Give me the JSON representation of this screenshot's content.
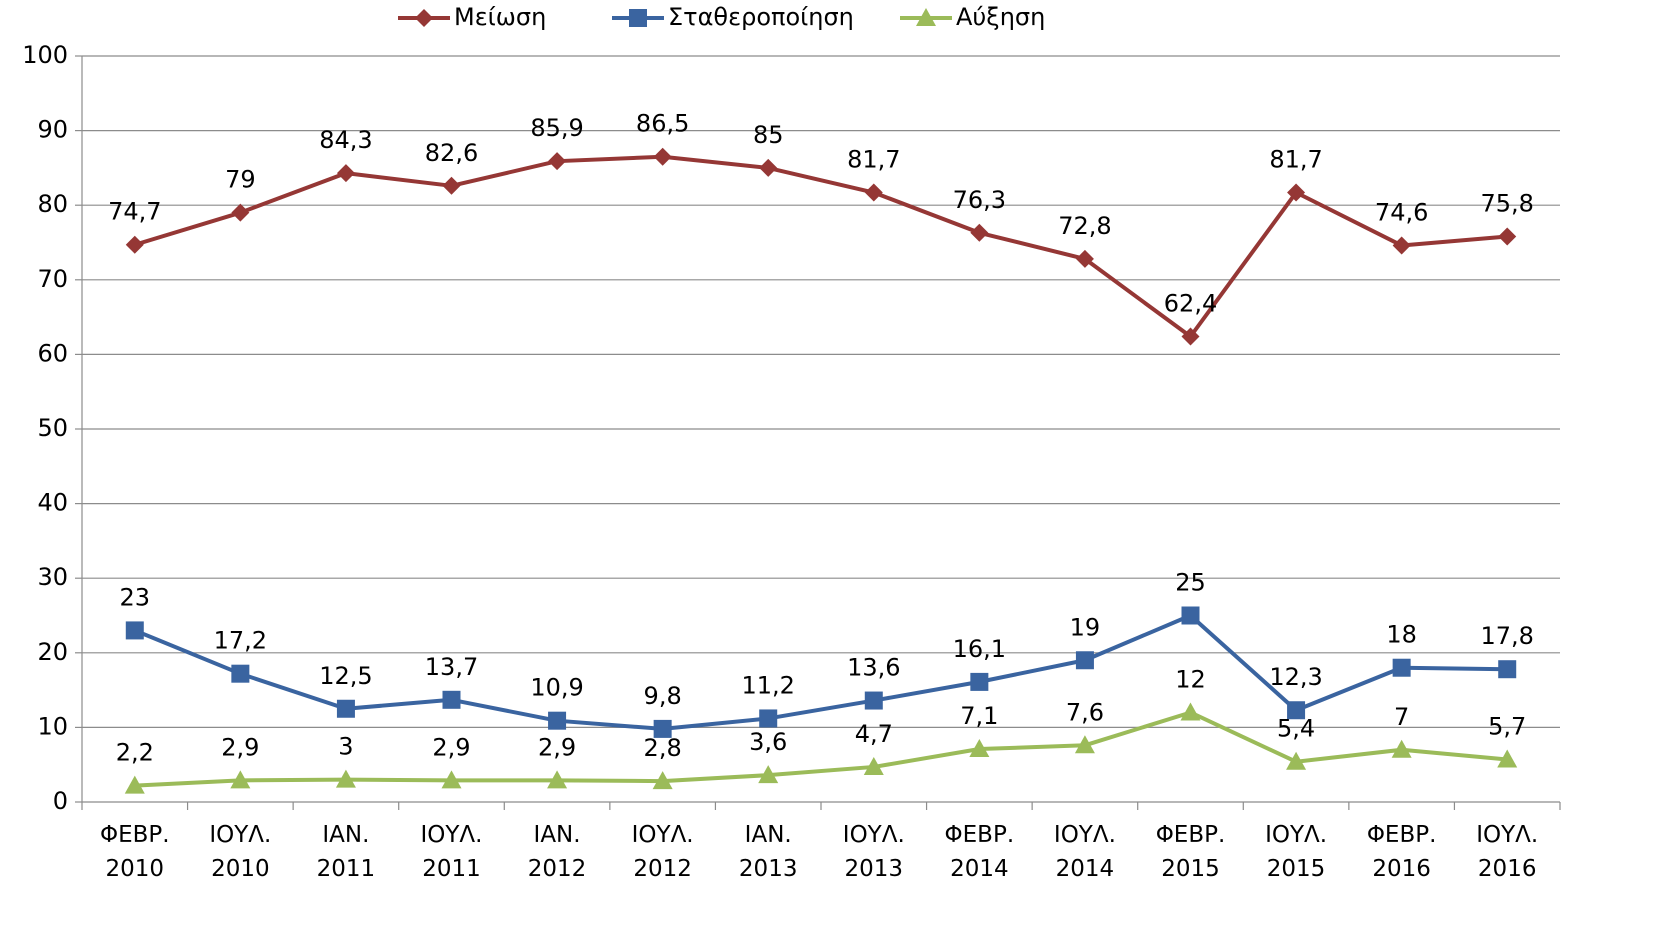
{
  "chart_data": {
    "type": "line",
    "categories": [
      "ΦΕΒΡ.\n2010",
      "ΙΟΥΛ.\n2010",
      "ΙΑΝ.\n2011",
      "ΙΟΥΛ.\n2011",
      "ΙΑΝ.\n2012",
      "ΙΟΥΛ.\n2012",
      "ΙΑΝ.\n2013",
      "ΙΟΥΛ.\n2013",
      "ΦΕΒΡ.\n2014",
      "ΙΟΥΛ.\n2014",
      "ΦΕΒΡ.\n2015",
      "ΙΟΥΛ.\n2015",
      "ΦΕΒΡ.\n2016",
      "ΙΟΥΛ.\n2016"
    ],
    "series": [
      {
        "name": "Μείωση",
        "color": "#953735",
        "marker": "diamond",
        "values": [
          74.7,
          79,
          84.3,
          82.6,
          85.9,
          86.5,
          85,
          81.7,
          76.3,
          72.8,
          62.4,
          81.7,
          74.6,
          75.8
        ],
        "value_labels": [
          "74,7",
          "79",
          "84,3",
          "82,6",
          "85,9",
          "86,5",
          "85",
          "81,7",
          "76,3",
          "72,8",
          "62,4",
          "81,7",
          "74,6",
          "75,8"
        ]
      },
      {
        "name": "Σταθεροποίηση",
        "color": "#3a64a0",
        "marker": "square",
        "values": [
          23,
          17.2,
          12.5,
          13.7,
          10.9,
          9.8,
          11.2,
          13.6,
          16.1,
          19,
          25,
          12.3,
          18,
          17.8
        ],
        "value_labels": [
          "23",
          "17,2",
          "12,5",
          "13,7",
          "10,9",
          "9,8",
          "11,2",
          "13,6",
          "16,1",
          "19",
          "25",
          "12,3",
          "18",
          "17,8"
        ]
      },
      {
        "name": "Αύξηση",
        "color": "#9bbb59",
        "marker": "triangle",
        "values": [
          2.2,
          2.9,
          3,
          2.9,
          2.9,
          2.8,
          3.6,
          4.7,
          7.1,
          7.6,
          12,
          5.4,
          7,
          5.7
        ],
        "value_labels": [
          "2,2",
          "2,9",
          "3",
          "2,9",
          "2,9",
          "2,8",
          "3,6",
          "4,7",
          "7,1",
          "7,6",
          "12",
          "5,4",
          "7",
          "5,7"
        ]
      }
    ],
    "ylim": [
      0,
      100
    ],
    "yticks": [
      0,
      10,
      20,
      30,
      40,
      50,
      60,
      70,
      80,
      90,
      100
    ],
    "grid": true,
    "legend": "top"
  }
}
